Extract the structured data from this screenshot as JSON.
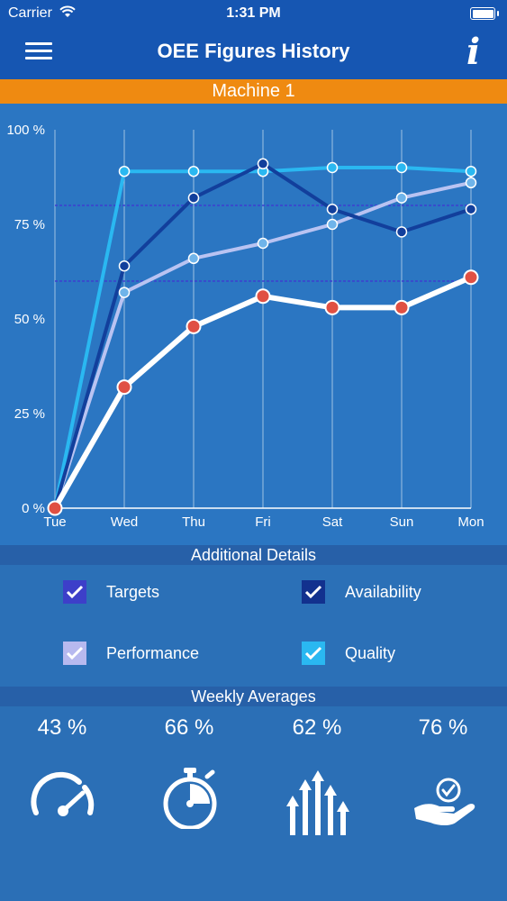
{
  "status_bar": {
    "carrier": "Carrier",
    "time": "1:31 PM"
  },
  "nav": {
    "title": "OEE Figures History"
  },
  "machine": {
    "name": "Machine 1"
  },
  "chart_data": {
    "type": "line",
    "x": [
      "Tue",
      "Wed",
      "Thu",
      "Fri",
      "Sat",
      "Sun",
      "Mon"
    ],
    "y_ticks": [
      "0 %",
      "25 %",
      "50 %",
      "75 %",
      "100 %"
    ],
    "ylim": [
      0,
      100
    ],
    "target_lines": [
      60,
      80
    ],
    "grid": true,
    "series": [
      {
        "name": "Targets",
        "color": "#ffffff",
        "marker_color": "#e05043",
        "values": [
          0,
          32,
          48,
          56,
          53,
          53,
          61
        ]
      },
      {
        "name": "Availability",
        "color": "#123f9c",
        "marker_color": "#123f9c",
        "values": [
          0,
          64,
          82,
          91,
          79,
          73,
          79
        ]
      },
      {
        "name": "Performance",
        "color": "#b9c3f2",
        "marker_color": "#6fb4ea",
        "values": [
          0,
          57,
          66,
          70,
          75,
          82,
          86
        ]
      },
      {
        "name": "Quality",
        "color": "#2ab8f1",
        "marker_color": "#2ab8f1",
        "values": [
          0,
          89,
          89,
          89,
          90,
          90,
          89
        ]
      }
    ]
  },
  "details": {
    "header": "Additional Details",
    "items": [
      {
        "label": "Targets",
        "color": "#3d3fc9",
        "checked": true
      },
      {
        "label": "Availability",
        "color": "#12318e",
        "checked": true
      },
      {
        "label": "Performance",
        "color": "#b7b9ef",
        "checked": true
      },
      {
        "label": "Quality",
        "color": "#2ab8f1",
        "checked": true
      }
    ]
  },
  "averages": {
    "header": "Weekly Averages",
    "items": [
      {
        "value": "43 %",
        "icon": "speedometer-icon"
      },
      {
        "value": "66 %",
        "icon": "stopwatch-icon"
      },
      {
        "value": "62 %",
        "icon": "arrows-up-icon"
      },
      {
        "value": "76 %",
        "icon": "hand-check-icon"
      }
    ]
  }
}
